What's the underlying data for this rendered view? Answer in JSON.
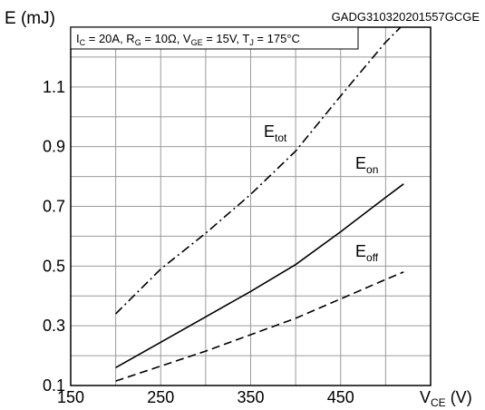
{
  "chart_data": {
    "type": "line",
    "figure_code": "GADG310320201557GCGE",
    "conditions": {
      "ic_sym": "I",
      "ic_sub": "C",
      "ic_val": " = 20A, ",
      "rg_sym": "R",
      "rg_sub": "G",
      "rg_val": " = 10Ω, ",
      "vge_sym": "V",
      "vge_sub": "GE",
      "vge_val": " = 15V, ",
      "tj_sym": "T",
      "tj_sub": "J",
      "tj_val": " = 175°C"
    },
    "ylabel": "E (mJ)",
    "xlabel_main": "V",
    "xlabel_sub": "CE",
    "xlabel_unit": " (V)",
    "xlim": [
      150,
      550
    ],
    "ylim": [
      0.1,
      1.3
    ],
    "x_ticks": [
      150,
      250,
      350,
      450
    ],
    "y_ticks": [
      0.1,
      0.3,
      0.5,
      0.7,
      0.9,
      1.1
    ],
    "x_tick_labels": [
      "150",
      "250",
      "350",
      "450"
    ],
    "y_tick_labels": [
      "0.1",
      "0.3",
      "0.5",
      "0.7",
      "0.9",
      "1.1"
    ],
    "grid": true,
    "series": [
      {
        "label_main": "E",
        "label_sub": "tot",
        "style": "dashdot",
        "x": [
          200,
          250,
          300,
          350,
          400,
          450,
          500,
          520
        ],
        "y": [
          0.34,
          0.49,
          0.61,
          0.74,
          0.885,
          1.07,
          1.25,
          1.31
        ]
      },
      {
        "label_main": "E",
        "label_sub": "on",
        "style": "solid",
        "x": [
          200,
          250,
          300,
          350,
          400,
          450,
          500,
          520
        ],
        "y": [
          0.16,
          0.245,
          0.33,
          0.415,
          0.505,
          0.615,
          0.73,
          0.775
        ]
      },
      {
        "label_main": "E",
        "label_sub": "off",
        "style": "dashed",
        "x": [
          200,
          250,
          300,
          350,
          400,
          450,
          500,
          520
        ],
        "y": [
          0.115,
          0.165,
          0.215,
          0.27,
          0.325,
          0.39,
          0.455,
          0.48
        ]
      }
    ]
  }
}
